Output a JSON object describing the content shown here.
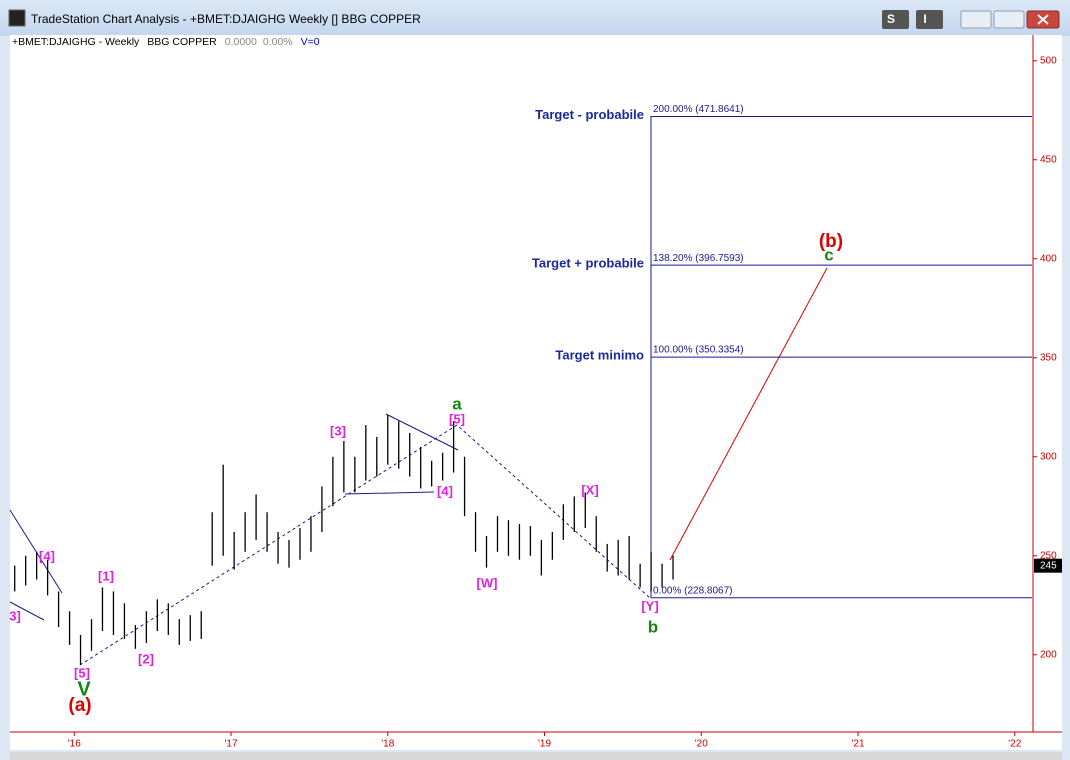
{
  "window": {
    "title": "TradeStation Chart Analysis - +BMET:DJAIGHG Weekly [] BBG COPPER",
    "buttons": [
      "S",
      "I"
    ]
  },
  "chart_data": {
    "type": "hilo",
    "symbol": "+BMET:DJAIGHG - Weekly",
    "description": "BBG COPPER",
    "change": "0.0000",
    "change_pct": "0.00%",
    "volume": "V=0",
    "color": "#000000",
    "x": [
      2015.62,
      2015.69,
      2015.76,
      2015.83,
      2015.9,
      2015.97,
      2016.04,
      2016.11,
      2016.18,
      2016.25,
      2016.32,
      2016.39,
      2016.46,
      2016.53,
      2016.6,
      2016.67,
      2016.74,
      2016.81,
      2016.88,
      2016.95,
      2017.02,
      2017.09,
      2017.16,
      2017.23,
      2017.3,
      2017.37,
      2017.44,
      2017.51,
      2017.58,
      2017.65,
      2017.72,
      2017.79,
      2017.86,
      2017.93,
      2018.0,
      2018.07,
      2018.14,
      2018.21,
      2018.28,
      2018.35,
      2018.42,
      2018.49,
      2018.56,
      2018.63,
      2018.7,
      2018.77,
      2018.84,
      2018.91,
      2018.98,
      2019.05,
      2019.12,
      2019.19,
      2019.26,
      2019.33,
      2019.4,
      2019.47,
      2019.54,
      2019.61,
      2019.68,
      2019.75,
      2019.82
    ],
    "high": [
      245,
      250,
      252,
      248,
      232,
      222,
      210,
      218,
      234,
      232,
      226,
      215,
      222,
      228,
      226,
      218,
      220,
      222,
      272,
      296,
      262,
      272,
      281,
      272,
      262,
      258,
      264,
      270,
      285,
      300,
      308,
      300,
      316,
      310,
      321,
      318,
      312,
      305,
      298,
      302,
      318,
      300,
      272,
      260,
      270,
      268,
      266,
      265,
      258,
      262,
      276,
      280,
      282,
      270,
      256,
      258,
      260,
      246,
      252,
      246,
      250
    ],
    "low": [
      232,
      235,
      238,
      230,
      214,
      205,
      195,
      202,
      212,
      210,
      208,
      203,
      206,
      212,
      210,
      205,
      207,
      208,
      245,
      250,
      243,
      252,
      258,
      252,
      246,
      244,
      248,
      252,
      262,
      275,
      282,
      282,
      288,
      290,
      296,
      294,
      290,
      284,
      285,
      288,
      292,
      270,
      252,
      244,
      252,
      250,
      248,
      250,
      240,
      248,
      258,
      262,
      264,
      252,
      242,
      240,
      238,
      234,
      232,
      234,
      238
    ],
    "last_price": 245,
    "ylim": [
      161,
      513
    ],
    "yticks": [
      200,
      250,
      300,
      350,
      400,
      450,
      500
    ],
    "xlim": [
      2015.59,
      2022.11
    ],
    "xticks": [
      {
        "value": 2016,
        "label": "'16"
      },
      {
        "value": 2017,
        "label": "'17"
      },
      {
        "value": 2018,
        "label": "'18"
      },
      {
        "value": 2019,
        "label": "'19"
      },
      {
        "value": 2020,
        "label": "'20"
      },
      {
        "value": 2021,
        "label": "'21"
      },
      {
        "value": 2022,
        "label": "'22"
      }
    ],
    "fib_levels": [
      {
        "label": "200.00% (471.8641)",
        "price": 471.8641,
        "target": "Target - probabile"
      },
      {
        "label": "138.20% (396.7593)",
        "price": 396.7593,
        "target": "Target + probabile"
      },
      {
        "label": "100.00% (350.3354)",
        "price": 350.3354,
        "target": "Target minimo"
      },
      {
        "label": "0.00% (228.8067)",
        "price": 228.8067
      }
    ],
    "wave_labels": [
      "[4]",
      "3]",
      "[1]",
      "[5]",
      "V",
      "(a)",
      "[2]",
      "[3]",
      "[4]",
      "[5]",
      "a",
      "[W]",
      "[X]",
      "[Y]",
      "b",
      "(b)",
      "c"
    ]
  }
}
